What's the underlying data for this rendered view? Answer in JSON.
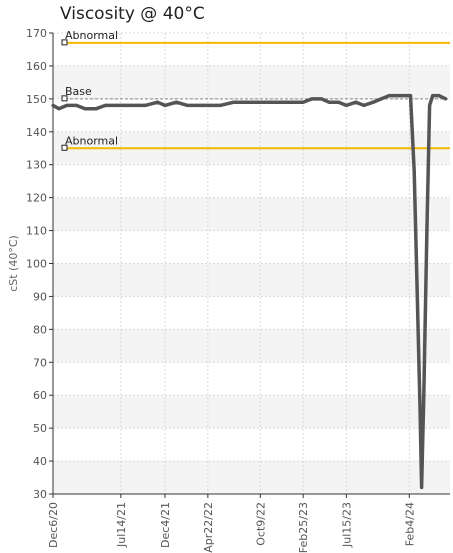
{
  "chart_data": {
    "type": "line",
    "title": "Viscosity @ 40°C",
    "ylabel": "cSt (40°C)",
    "xlabel": "",
    "ylim": [
      30,
      170
    ],
    "yticks": [
      30,
      40,
      50,
      60,
      70,
      80,
      90,
      100,
      110,
      120,
      130,
      140,
      150,
      160,
      170
    ],
    "xlim": [
      "2020-12-06",
      "2024-06-15"
    ],
    "xticks": [
      {
        "date": "2020-12-06",
        "label": "Dec6/20"
      },
      {
        "date": "2021-07-14",
        "label": "Jul14/21"
      },
      {
        "date": "2021-12-04",
        "label": "Dec4/21"
      },
      {
        "date": "2022-04-22",
        "label": "Apr22/22"
      },
      {
        "date": "2022-10-09",
        "label": "Oct9/22"
      },
      {
        "date": "2023-02-25",
        "label": "Feb25/23"
      },
      {
        "date": "2023-07-15",
        "label": "Jul15/23"
      },
      {
        "date": "2024-02-04",
        "label": "Feb4/24"
      }
    ],
    "grid": true,
    "reference_lines": [
      {
        "label": "Abnormal",
        "value": 167,
        "color": "#f5b800"
      },
      {
        "label": "Base",
        "value": 150,
        "color": "#888888"
      },
      {
        "label": "Abnormal",
        "value": 135,
        "color": "#f5b800"
      }
    ],
    "series": [
      {
        "color": "#555555",
        "points": [
          [
            "2020-12-06",
            148
          ],
          [
            "2020-12-25",
            147
          ],
          [
            "2021-01-20",
            148
          ],
          [
            "2021-02-20",
            148
          ],
          [
            "2021-03-20",
            147
          ],
          [
            "2021-04-25",
            147
          ],
          [
            "2021-05-25",
            148
          ],
          [
            "2021-07-14",
            148
          ],
          [
            "2021-08-20",
            148
          ],
          [
            "2021-10-01",
            148
          ],
          [
            "2021-11-10",
            149
          ],
          [
            "2021-12-04",
            148
          ],
          [
            "2022-01-10",
            149
          ],
          [
            "2022-02-15",
            148
          ],
          [
            "2022-03-20",
            148
          ],
          [
            "2022-04-22",
            148
          ],
          [
            "2022-06-01",
            148
          ],
          [
            "2022-07-15",
            149
          ],
          [
            "2022-08-20",
            149
          ],
          [
            "2022-10-09",
            149
          ],
          [
            "2022-11-15",
            149
          ],
          [
            "2022-12-20",
            149
          ],
          [
            "2023-01-25",
            149
          ],
          [
            "2023-02-25",
            149
          ],
          [
            "2023-03-25",
            150
          ],
          [
            "2023-04-25",
            150
          ],
          [
            "2023-05-20",
            149
          ],
          [
            "2023-06-20",
            149
          ],
          [
            "2023-07-15",
            148
          ],
          [
            "2023-08-15",
            149
          ],
          [
            "2023-09-10",
            148
          ],
          [
            "2023-10-10",
            149
          ],
          [
            "2023-11-05",
            150
          ],
          [
            "2023-12-01",
            151
          ],
          [
            "2024-01-01",
            151
          ],
          [
            "2024-01-25",
            151
          ],
          [
            "2024-02-08",
            151
          ],
          [
            "2024-02-20",
            128
          ],
          [
            "2024-03-01",
            90
          ],
          [
            "2024-03-10",
            55
          ],
          [
            "2024-03-15",
            32
          ],
          [
            "2024-03-22",
            60
          ],
          [
            "2024-04-01",
            110
          ],
          [
            "2024-04-10",
            148
          ],
          [
            "2024-04-20",
            151
          ],
          [
            "2024-05-10",
            151
          ],
          [
            "2024-06-01",
            150
          ]
        ]
      }
    ]
  }
}
